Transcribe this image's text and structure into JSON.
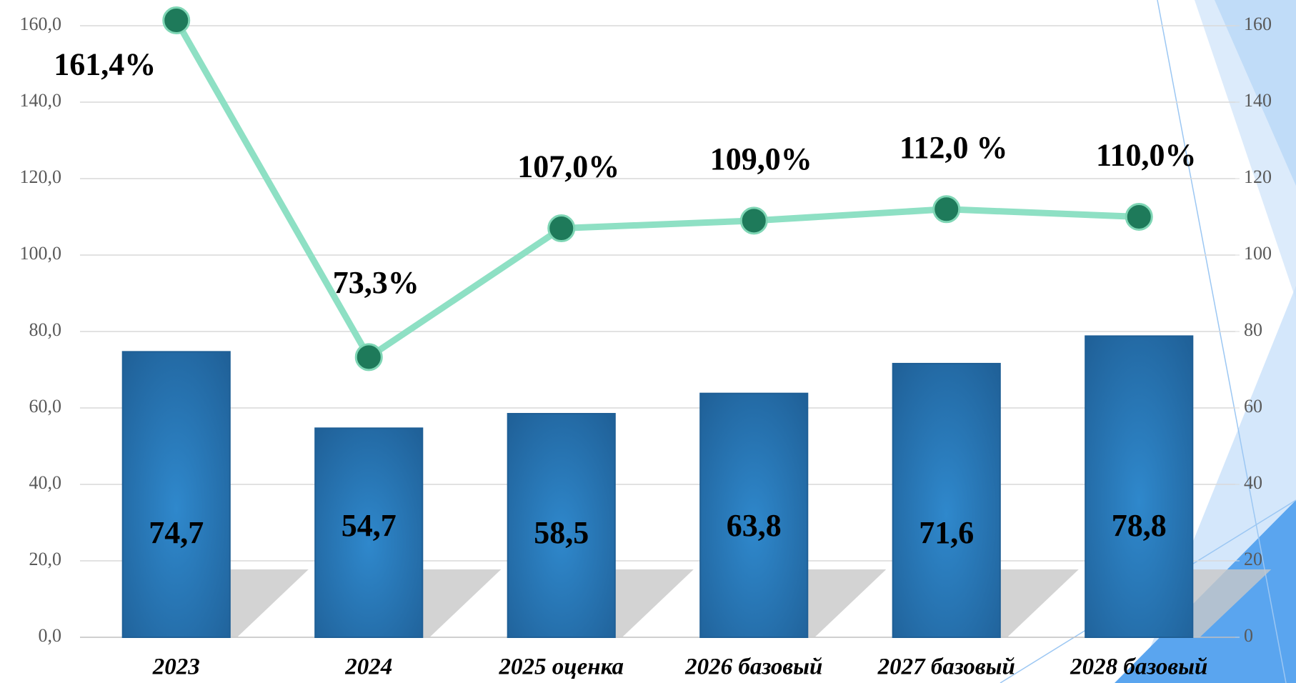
{
  "chart_data": {
    "type": "combo",
    "categories": [
      "2023",
      "2024",
      "2025 оценка",
      "2026 базовый",
      "2027 базовый",
      "2028 базовый"
    ],
    "series": [
      {
        "type": "bar",
        "color": "#1f5f96",
        "values": [
          74.7,
          54.7,
          58.5,
          63.8,
          71.6,
          78.8
        ],
        "value_labels": [
          "74,7",
          "54,7",
          "58,5",
          "63,8",
          "71,6",
          "78,8"
        ]
      },
      {
        "type": "line",
        "axis": "y2",
        "color": "#8ee0c4",
        "values": [
          161.4,
          73.3,
          107.0,
          109.0,
          112.0,
          110.0
        ],
        "value_labels": [
          "161,4%",
          "73,3%",
          "107,0%",
          "109,0%",
          "112,0 %",
          "110,0%"
        ]
      }
    ],
    "ylim": [
      0,
      160
    ],
    "yticks": [
      {
        "value": 0,
        "label": "0,0"
      },
      {
        "value": 20,
        "label": "20,0"
      },
      {
        "value": 40,
        "label": "40,0"
      },
      {
        "value": 60,
        "label": "60,0"
      },
      {
        "value": 80,
        "label": "80,0"
      },
      {
        "value": 100,
        "label": "100,0"
      },
      {
        "value": 120,
        "label": "120,0"
      },
      {
        "value": 140,
        "label": "140,0"
      },
      {
        "value": 160,
        "label": "160,0"
      }
    ],
    "y2lim": [
      0,
      160
    ],
    "y2ticks": [
      0,
      20,
      40,
      60,
      80,
      100,
      120,
      140,
      160
    ],
    "grid": true
  }
}
